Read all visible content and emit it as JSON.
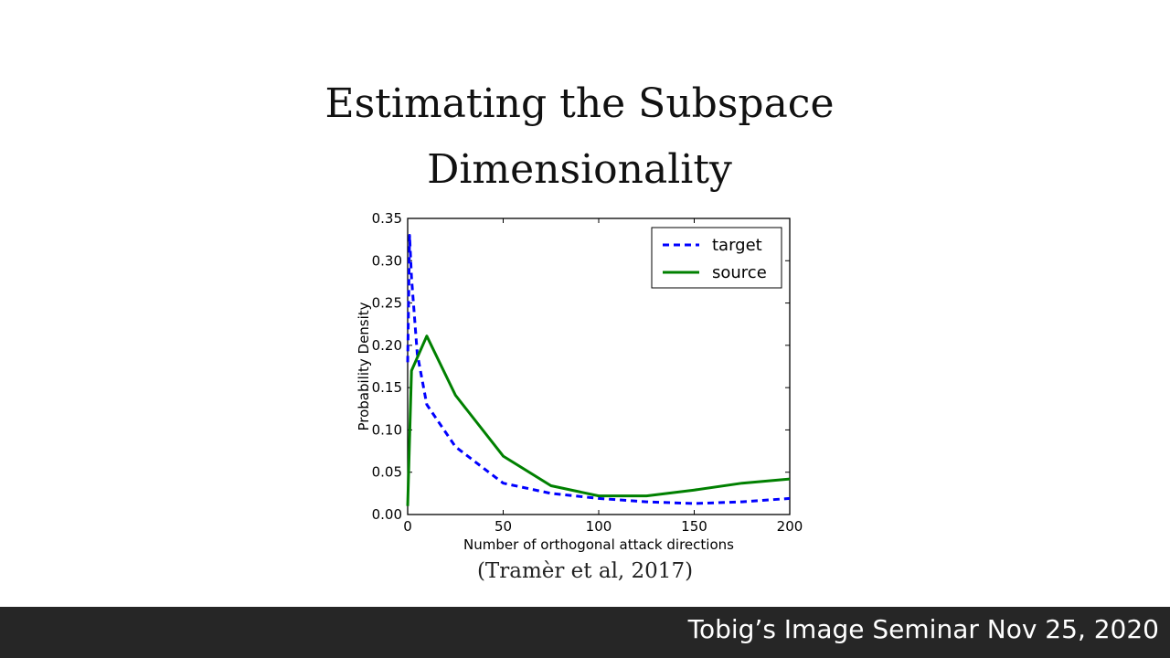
{
  "slide": {
    "title": "Estimating the Subspace\nDimensionality",
    "citation": "(Tramèr et al, 2017)"
  },
  "footer": {
    "text": "Tobig’s Image Seminar Nov 25, 2020",
    "background": "#262626"
  },
  "chart_data": {
    "type": "line",
    "xlabel": "Number of orthogonal attack directions",
    "ylabel": "Probability Density",
    "xlim": [
      0,
      200
    ],
    "ylim": [
      0,
      0.35
    ],
    "xticks": [
      0,
      50,
      100,
      150,
      200
    ],
    "yticks": [
      0.0,
      0.05,
      0.1,
      0.15,
      0.2,
      0.25,
      0.3,
      0.35
    ],
    "xtick_labels": [
      "0",
      "50",
      "100",
      "150",
      "200"
    ],
    "ytick_labels": [
      "0.00",
      "0.05",
      "0.10",
      "0.15",
      "0.20",
      "0.25",
      "0.30",
      "0.35"
    ],
    "grid": false,
    "legend_position": "top-right",
    "series": [
      {
        "name": "target",
        "color": "#0000ff",
        "style": "dashed",
        "x": [
          0,
          1,
          2,
          5,
          10,
          25,
          50,
          75,
          100,
          125,
          150,
          175,
          200
        ],
        "y": [
          0.18,
          0.33,
          0.28,
          0.19,
          0.13,
          0.08,
          0.037,
          0.025,
          0.019,
          0.015,
          0.013,
          0.015,
          0.019
        ]
      },
      {
        "name": "source",
        "color": "#008000",
        "style": "solid",
        "x": [
          0,
          2,
          10,
          25,
          50,
          75,
          100,
          125,
          150,
          175,
          200
        ],
        "y": [
          0.01,
          0.17,
          0.211,
          0.141,
          0.069,
          0.034,
          0.022,
          0.022,
          0.029,
          0.037,
          0.042
        ]
      }
    ]
  }
}
